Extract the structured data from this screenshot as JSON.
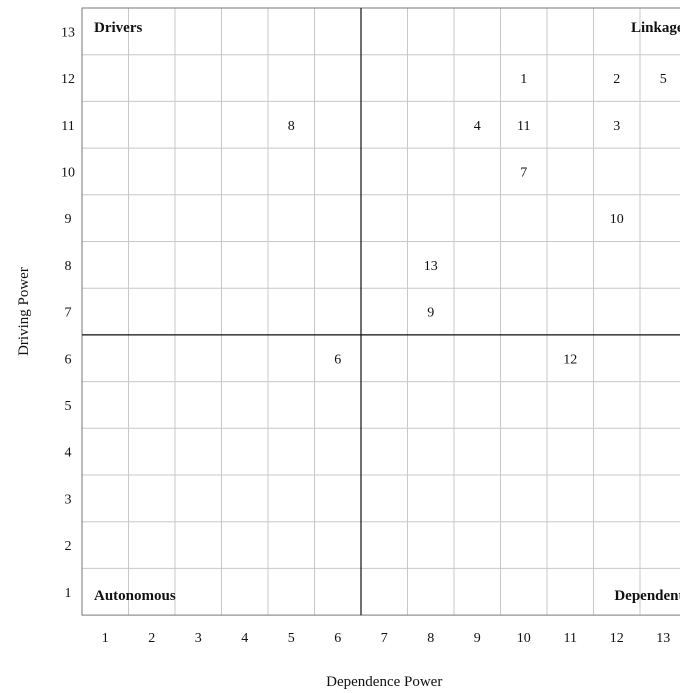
{
  "chart_data": {
    "type": "scatter",
    "xlabel": "Dependence Power",
    "ylabel": "Driving Power",
    "xlim": [
      1,
      13
    ],
    "ylim": [
      1,
      13
    ],
    "x_ticks": [
      "1",
      "2",
      "3",
      "4",
      "5",
      "6",
      "7",
      "8",
      "9",
      "10",
      "11",
      "12",
      "13"
    ],
    "y_ticks": [
      "1",
      "2",
      "3",
      "4",
      "5",
      "6",
      "7",
      "8",
      "9",
      "10",
      "11",
      "12",
      "13"
    ],
    "grid": true,
    "divider": {
      "x": 6.5,
      "y": 6.5
    },
    "quadrants": [
      {
        "label": "Drivers",
        "position": "top-left"
      },
      {
        "label": "Linkage",
        "position": "top-right"
      },
      {
        "label": "Autonomous",
        "position": "bottom-left"
      },
      {
        "label": "Dependent",
        "position": "bottom-right"
      }
    ],
    "points": [
      {
        "label": "1",
        "x": 10,
        "y": 12
      },
      {
        "label": "2",
        "x": 12,
        "y": 12
      },
      {
        "label": "5",
        "x": 13,
        "y": 12
      },
      {
        "label": "8",
        "x": 5,
        "y": 11
      },
      {
        "label": "4",
        "x": 9,
        "y": 11
      },
      {
        "label": "11",
        "x": 10,
        "y": 11
      },
      {
        "label": "3",
        "x": 12,
        "y": 11
      },
      {
        "label": "7",
        "x": 10,
        "y": 10
      },
      {
        "label": "10",
        "x": 12,
        "y": 9
      },
      {
        "label": "13",
        "x": 8,
        "y": 8
      },
      {
        "label": "9",
        "x": 8,
        "y": 7
      },
      {
        "label": "6",
        "x": 6,
        "y": 6
      },
      {
        "label": "12",
        "x": 11,
        "y": 6
      }
    ]
  }
}
